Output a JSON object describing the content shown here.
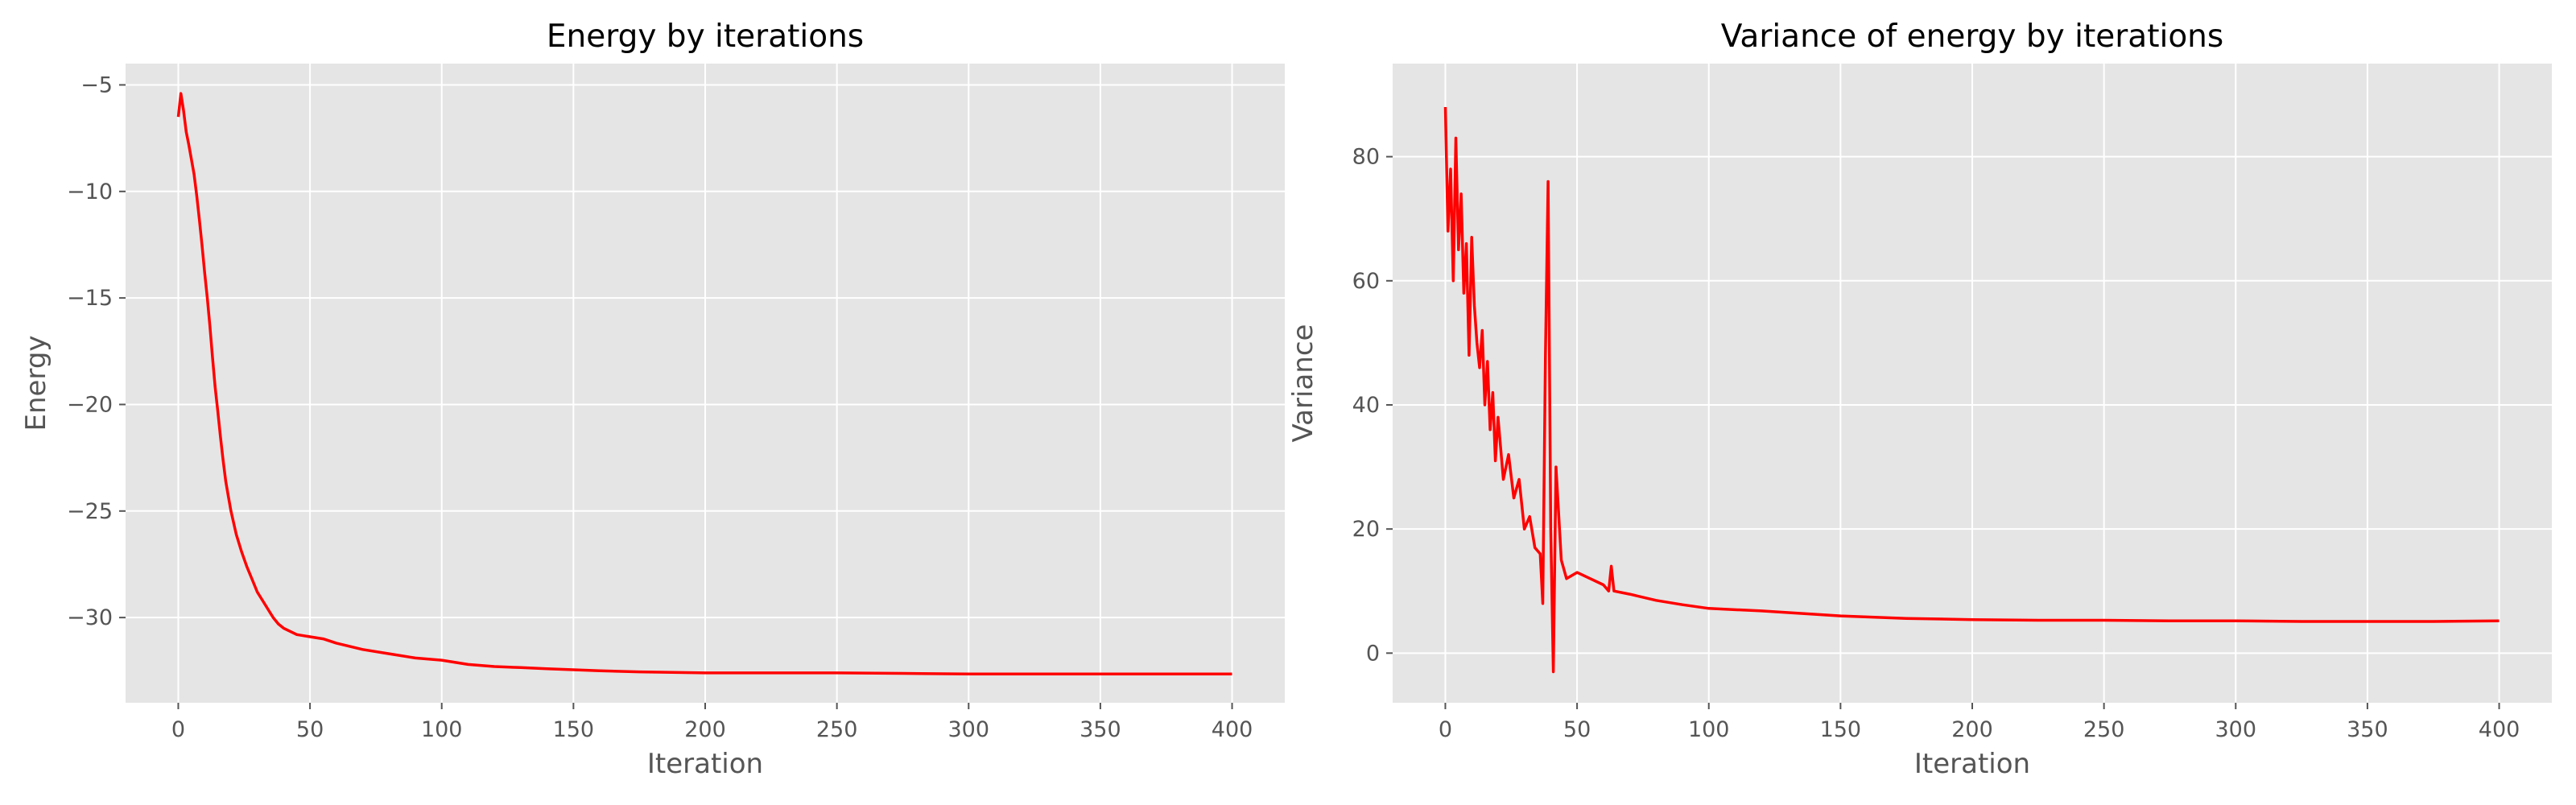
{
  "chart_data": [
    {
      "type": "line",
      "title": "Energy by iterations",
      "xlabel": "Iteration",
      "ylabel": "Energy",
      "xlim": [
        -20,
        420
      ],
      "ylim": [
        -34,
        -4
      ],
      "xticks": [
        0,
        50,
        100,
        150,
        200,
        250,
        300,
        350,
        400
      ],
      "xtick_labels": [
        "0",
        "50",
        "100",
        "150",
        "200",
        "250",
        "300",
        "350",
        "400"
      ],
      "yticks": [
        -30,
        -25,
        -20,
        -15,
        -10,
        -5
      ],
      "ytick_labels": [
        "−30",
        "−25",
        "−20",
        "−15",
        "−10",
        "−5"
      ],
      "grid": true,
      "background": "#e5e5e5",
      "line_color": "#ff0000",
      "series": [
        {
          "x": [
            0,
            1,
            2,
            3,
            4,
            5,
            6,
            7,
            8,
            9,
            10,
            11,
            12,
            13,
            14,
            15,
            16,
            17,
            18,
            19,
            20,
            22,
            24,
            26,
            28,
            30,
            32,
            34,
            36,
            38,
            40,
            45,
            50,
            55,
            60,
            70,
            80,
            90,
            100,
            110,
            120,
            130,
            140,
            150,
            160,
            175,
            200,
            225,
            250,
            275,
            300,
            325,
            350,
            375,
            400
          ],
          "y": [
            -6.5,
            -5.4,
            -6.2,
            -7.2,
            -7.8,
            -8.5,
            -9.2,
            -10.2,
            -11.3,
            -12.5,
            -13.8,
            -15.0,
            -16.3,
            -17.8,
            -19.2,
            -20.3,
            -21.5,
            -22.6,
            -23.6,
            -24.3,
            -25.0,
            -26.1,
            -26.9,
            -27.6,
            -28.2,
            -28.8,
            -29.2,
            -29.6,
            -30.0,
            -30.3,
            -30.5,
            -30.8,
            -30.9,
            -31.0,
            -31.2,
            -31.5,
            -31.7,
            -31.9,
            -32.0,
            -32.2,
            -32.3,
            -32.35,
            -32.4,
            -32.45,
            -32.5,
            -32.55,
            -32.6,
            -32.6,
            -32.6,
            -32.62,
            -32.65,
            -32.65,
            -32.65,
            -32.65,
            -32.65
          ]
        }
      ]
    },
    {
      "type": "line",
      "title": "Variance of energy by iterations",
      "xlabel": "Iteration",
      "ylabel": "Variance",
      "xlim": [
        -20,
        420
      ],
      "ylim": [
        -8,
        95
      ],
      "xticks": [
        0,
        50,
        100,
        150,
        200,
        250,
        300,
        350,
        400
      ],
      "xtick_labels": [
        "0",
        "50",
        "100",
        "150",
        "200",
        "250",
        "300",
        "350",
        "400"
      ],
      "yticks": [
        0,
        20,
        40,
        60,
        80
      ],
      "ytick_labels": [
        "0",
        "20",
        "40",
        "60",
        "80"
      ],
      "grid": true,
      "background": "#e5e5e5",
      "line_color": "#ff0000",
      "series": [
        {
          "x": [
            0,
            1,
            2,
            3,
            4,
            5,
            6,
            7,
            8,
            9,
            10,
            11,
            12,
            13,
            14,
            15,
            16,
            17,
            18,
            19,
            20,
            22,
            24,
            26,
            28,
            30,
            32,
            34,
            36,
            37,
            38,
            39,
            40,
            41,
            42,
            44,
            46,
            50,
            55,
            60,
            62,
            63,
            64,
            70,
            80,
            90,
            100,
            120,
            150,
            175,
            200,
            225,
            250,
            275,
            300,
            325,
            350,
            375,
            400
          ],
          "y": [
            88,
            68,
            78,
            60,
            83,
            65,
            74,
            58,
            66,
            48,
            67,
            56,
            50,
            46,
            52,
            40,
            47,
            36,
            42,
            31,
            38,
            28,
            32,
            25,
            28,
            20,
            22,
            17,
            16,
            8,
            48,
            76,
            20,
            -3,
            30,
            15,
            12,
            13,
            12,
            11,
            10,
            14,
            10,
            9.5,
            8.5,
            7.8,
            7.2,
            6.8,
            6.0,
            5.6,
            5.4,
            5.3,
            5.3,
            5.2,
            5.2,
            5.1,
            5.1,
            5.1,
            5.2
          ]
        }
      ]
    }
  ]
}
